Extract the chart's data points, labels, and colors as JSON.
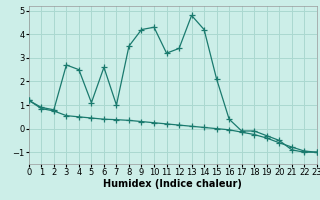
{
  "title": "",
  "xlabel": "Humidex (Indice chaleur)",
  "background_color": "#cceee8",
  "grid_color": "#aad8d0",
  "line_color": "#1a7a6e",
  "x_line1": [
    0,
    1,
    2,
    3,
    4,
    5,
    6,
    7,
    8,
    9,
    10,
    11,
    12,
    13,
    14,
    15,
    16,
    17,
    18,
    19,
    20,
    21,
    22,
    23
  ],
  "y_line1": [
    1.2,
    0.9,
    0.8,
    2.7,
    2.5,
    1.1,
    2.6,
    1.0,
    3.5,
    4.2,
    4.3,
    3.2,
    3.4,
    4.8,
    4.2,
    2.1,
    0.4,
    -0.1,
    -0.1,
    -0.3,
    -0.5,
    -0.9,
    -1.0,
    -1.0
  ],
  "x_line2": [
    0,
    1,
    2,
    3,
    4,
    5,
    6,
    7,
    8,
    9,
    10,
    11,
    12,
    13,
    14,
    15,
    16,
    17,
    18,
    19,
    20,
    21,
    22,
    23
  ],
  "y_line2": [
    1.2,
    0.85,
    0.75,
    0.55,
    0.5,
    0.45,
    0.4,
    0.38,
    0.35,
    0.3,
    0.25,
    0.2,
    0.15,
    0.1,
    0.05,
    0.0,
    -0.05,
    -0.15,
    -0.25,
    -0.4,
    -0.6,
    -0.78,
    -0.95,
    -1.0
  ],
  "xlim": [
    0,
    23
  ],
  "ylim": [
    -1.5,
    5.2
  ],
  "yticks": [
    -1,
    0,
    1,
    2,
    3,
    4,
    5
  ],
  "xticks": [
    0,
    1,
    2,
    3,
    4,
    5,
    6,
    7,
    8,
    9,
    10,
    11,
    12,
    13,
    14,
    15,
    16,
    17,
    18,
    19,
    20,
    21,
    22,
    23
  ],
  "marker": "+",
  "markersize": 4,
  "linewidth": 0.9,
  "fontsize_label": 7,
  "fontsize_tick": 6
}
